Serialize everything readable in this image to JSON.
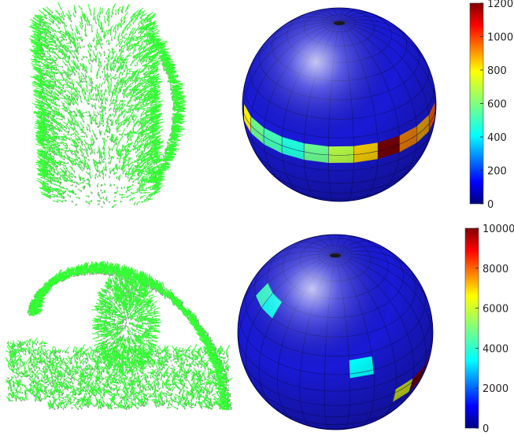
{
  "colors": {
    "normal_green": "#33ff33",
    "point_gray": "#8a8a8a",
    "sphere_base": "#1a1ad8",
    "sphere_grid": "#0a0a55"
  },
  "chart_data": [
    {
      "type": "heatmap",
      "panel": "top-right",
      "subject": "mug point cloud normals",
      "colorbar": {
        "min": 0,
        "max": 1200,
        "ticks": [
          0,
          200,
          400,
          600,
          800,
          1000,
          1200
        ],
        "tick_labels": [
          "0",
          "200",
          "400",
          "600",
          "800",
          "1000",
          "1200"
        ]
      },
      "sphere_cells": [
        {
          "band": "equator",
          "lon_index": 0,
          "value": 700
        },
        {
          "band": "equator",
          "lon_index": 1,
          "value": 500
        },
        {
          "band": "equator",
          "lon_index": 2,
          "value": 450
        },
        {
          "band": "equator",
          "lon_index": 3,
          "value": 400
        },
        {
          "band": "equator",
          "lon_index": 4,
          "value": 500
        },
        {
          "band": "equator",
          "lon_index": 5,
          "value": 600
        },
        {
          "band": "equator",
          "lon_index": 6,
          "value": 750
        },
        {
          "band": "equator",
          "lon_index": 7,
          "value": 1200
        },
        {
          "band": "equator",
          "lon_index": 8,
          "value": 850
        },
        {
          "band": "equator",
          "lon_index": 9,
          "value": 800
        },
        {
          "band": "equator",
          "lon_index": 10,
          "value": 900
        },
        {
          "band": "equator",
          "lon_index": 11,
          "value": 950
        },
        {
          "band": "equator",
          "lon_index": 12,
          "value": 850
        },
        {
          "band": "equator",
          "lon_index": 13,
          "value": 1000
        }
      ]
    },
    {
      "type": "heatmap",
      "panel": "bottom-right",
      "subject": "scene point cloud normals",
      "colorbar": {
        "min": 0,
        "max": 10000,
        "ticks": [
          0,
          2000,
          4000,
          6000,
          8000,
          10000
        ],
        "tick_labels": [
          "0",
          "2000",
          "4000",
          "6000",
          "8000",
          "10000"
        ]
      },
      "sphere_cells": [
        {
          "band": "upper",
          "lon_index": 0,
          "value": 3500
        },
        {
          "band": "upper",
          "lon_index": 1,
          "value": 3000
        },
        {
          "band": "mid",
          "lon_index": 6,
          "value": 3000
        },
        {
          "band": "lower",
          "lon_index": 8,
          "value": 5500
        },
        {
          "band": "lower",
          "lon_index": 9,
          "value": 10000
        },
        {
          "band": "lower",
          "lon_index": 10,
          "value": 10000
        },
        {
          "band": "lower",
          "lon_index": 11,
          "value": 4500
        }
      ]
    }
  ]
}
